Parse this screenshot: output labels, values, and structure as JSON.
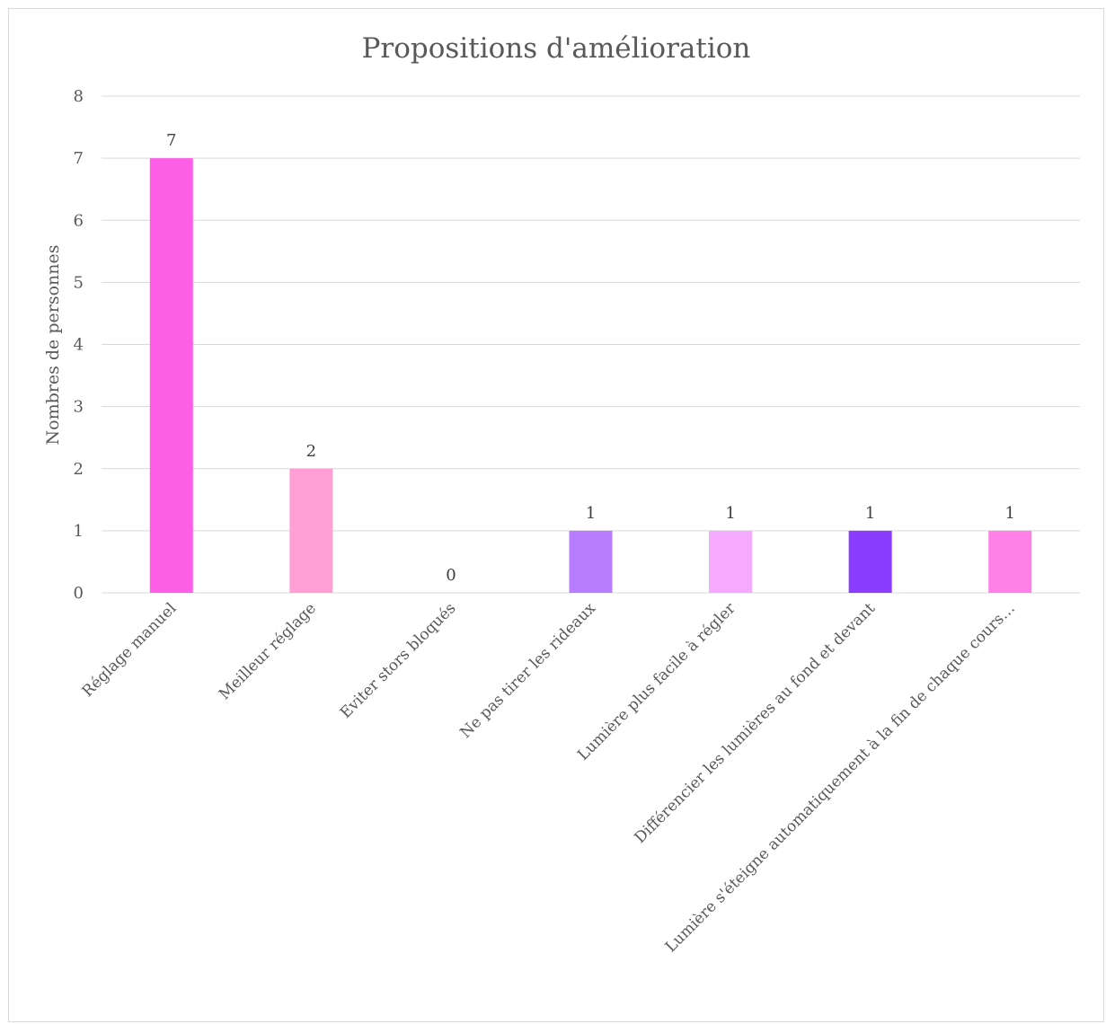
{
  "chart_data": {
    "type": "bar",
    "title": "Propositions d'amélioration",
    "xlabel": "",
    "ylabel": "Nombres de personnes",
    "ylim": [
      0,
      8
    ],
    "yticks": [
      "0",
      "1",
      "2",
      "3",
      "4",
      "5",
      "6",
      "7",
      "8"
    ],
    "grid": true,
    "categories": [
      "Réglage manuel",
      "Meilleur réglage",
      "Eviter stors bloqués",
      "Ne pas tirer les rideaux",
      "Lumière plus facile à régler",
      "Différencier les lumières au fond et devant",
      "Lumière s'éteigne automatiquement à la fin de chaque cours…"
    ],
    "values": [
      7,
      2,
      0,
      1,
      1,
      1,
      1
    ],
    "data_labels": [
      "7",
      "2",
      "0",
      "1",
      "1",
      "1",
      "1"
    ],
    "bar_colors": [
      "#ff5ee6",
      "#ff9fd6",
      "#d98cff",
      "#b87cff",
      "#f6aaff",
      "#8a3cff",
      "#ff80e6"
    ]
  }
}
